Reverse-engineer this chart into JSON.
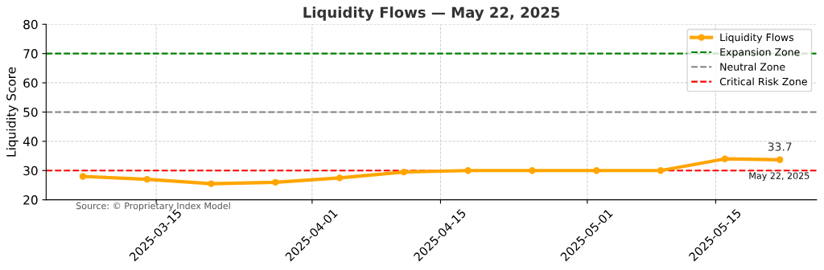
{
  "chart_data": {
    "type": "line",
    "title": "Liquidity Flows — May 22, 2025",
    "ylabel": "Liquidity Score",
    "x": [
      "2025-03-07",
      "2025-03-14",
      "2025-03-21",
      "2025-03-28",
      "2025-04-04",
      "2025-04-11",
      "2025-04-18",
      "2025-04-25",
      "2025-05-02",
      "2025-05-09",
      "2025-05-16",
      "2025-05-22"
    ],
    "series": [
      {
        "name": "Liquidity Flows",
        "color": "#ffa500",
        "values": [
          28.0,
          27.0,
          25.5,
          26.0,
          27.5,
          29.5,
          30.0,
          30.0,
          30.0,
          30.0,
          34.0,
          33.7
        ]
      }
    ],
    "ref_lines": [
      {
        "axis": "y",
        "value": 70,
        "label": "Expansion Zone",
        "color": "#008000",
        "line_style": "dashed"
      },
      {
        "axis": "y",
        "value": 50,
        "label": "Neutral Zone",
        "color": "#808080",
        "line_style": "dashed"
      },
      {
        "axis": "y",
        "value": 30,
        "label": "Critical Risk Zone",
        "color": "#ff0000",
        "line_style": "dashed"
      }
    ],
    "annotations": [
      {
        "text": "33.7",
        "x": "2025-05-22",
        "y": 33.7
      },
      {
        "text": "May 22, 2025",
        "x": "2025-05-22",
        "y": 33.7
      },
      "Source: © Proprietary Index Model"
    ],
    "xlim": [
      "2025-03-03",
      "2025-05-26"
    ],
    "xticks": [
      {
        "value": "2025-03-15",
        "label": "2025-03-15"
      },
      {
        "value": "2025-04-01",
        "label": "2025-04-01"
      },
      {
        "value": "2025-04-15",
        "label": "2025-04-15"
      },
      {
        "value": "2025-05-01",
        "label": "2025-05-01"
      },
      {
        "value": "2025-05-15",
        "label": "2025-05-15"
      }
    ],
    "ylim": [
      20,
      80
    ],
    "yticks": [
      20,
      30,
      40,
      50,
      60,
      70,
      80
    ],
    "grid": true,
    "legend": "top right",
    "marker": "circle",
    "line_style": "solid"
  }
}
